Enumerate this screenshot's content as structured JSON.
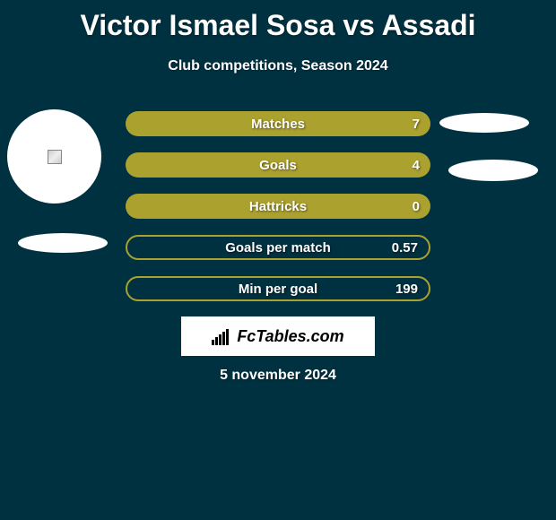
{
  "title": "Victor Ismael Sosa vs Assadi",
  "subtitle": "Club competitions, Season 2024",
  "date": "5 november 2024",
  "logo_text": "FcTables.com",
  "colors": {
    "background": "#003140",
    "bar_fill": "#aba12e",
    "text": "#ffffff",
    "logo_bg": "#ffffff",
    "logo_text": "#000000"
  },
  "stats": [
    {
      "label": "Matches",
      "value": "7",
      "style": "full"
    },
    {
      "label": "Goals",
      "value": "4",
      "style": "full"
    },
    {
      "label": "Hattricks",
      "value": "0",
      "style": "full"
    },
    {
      "label": "Goals per match",
      "value": "0.57",
      "style": "border"
    },
    {
      "label": "Min per goal",
      "value": "199",
      "style": "border"
    }
  ],
  "avatar_left": {
    "broken": true
  },
  "decorative_ellipses": {
    "left_shadow": true,
    "right_1": true,
    "right_2": true
  }
}
